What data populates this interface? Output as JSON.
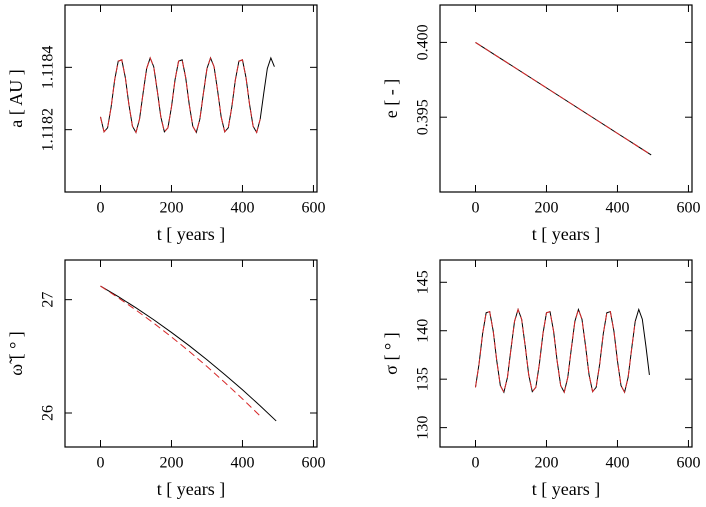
{
  "chart_data": [
    {
      "type": "line",
      "xlabel": "t [ years ]",
      "ylabel": "a [ AU ]",
      "xlim": [
        -100,
        610
      ],
      "xticks": [
        0,
        200,
        400,
        600
      ],
      "ylim": [
        1.118,
        1.1186
      ],
      "yticks": [
        1.1182,
        1.1184
      ],
      "series": [
        {
          "color": "#000000",
          "dashed": false,
          "x": [
            0,
            10,
            20,
            30,
            40,
            50,
            60,
            70,
            80,
            90,
            100,
            110,
            120,
            130,
            140,
            150,
            160,
            170,
            180,
            190,
            200,
            210,
            220,
            230,
            240,
            250,
            260,
            270,
            280,
            290,
            300,
            310,
            320,
            330,
            340,
            350,
            360,
            370,
            380,
            390,
            400,
            410,
            420,
            430,
            440,
            450,
            460,
            470,
            480,
            490
          ],
          "values": [
            1.118241,
            1.118193,
            1.118206,
            1.118273,
            1.11836,
            1.11842,
            1.118424,
            1.118367,
            1.118281,
            1.118211,
            1.118191,
            1.118234,
            1.118317,
            1.118396,
            1.11843,
            1.118402,
            1.118325,
            1.118241,
            1.118193,
            1.118206,
            1.118273,
            1.11836,
            1.11842,
            1.118424,
            1.118367,
            1.118281,
            1.118211,
            1.118191,
            1.118234,
            1.118317,
            1.118396,
            1.11843,
            1.118402,
            1.118325,
            1.118241,
            1.118193,
            1.118206,
            1.118273,
            1.11836,
            1.11842,
            1.118424,
            1.118367,
            1.118281,
            1.118211,
            1.118191,
            1.118234,
            1.118317,
            1.118396,
            1.11843,
            1.118402
          ]
        },
        {
          "color": "#d62728",
          "dashed": true,
          "x": [
            0,
            10,
            20,
            30,
            40,
            50,
            60,
            70,
            80,
            90,
            100,
            110,
            120,
            130,
            140,
            150,
            160,
            170,
            180,
            190,
            200,
            210,
            220,
            230,
            240,
            250,
            260,
            270,
            280,
            290,
            300,
            310,
            320,
            330,
            340,
            350,
            360,
            370,
            380,
            390,
            400,
            410,
            420,
            430,
            440,
            450
          ],
          "values": [
            1.118241,
            1.118193,
            1.118206,
            1.118273,
            1.11836,
            1.11842,
            1.118424,
            1.118367,
            1.118281,
            1.118211,
            1.118191,
            1.118234,
            1.118317,
            1.118396,
            1.11843,
            1.118402,
            1.118325,
            1.118241,
            1.118193,
            1.118206,
            1.118273,
            1.11836,
            1.11842,
            1.118424,
            1.118367,
            1.118281,
            1.118211,
            1.118191,
            1.118234,
            1.118317,
            1.118396,
            1.11843,
            1.118402,
            1.118325,
            1.118241,
            1.118193,
            1.118206,
            1.118273,
            1.11836,
            1.11842,
            1.118424,
            1.118367,
            1.118281,
            1.118211,
            1.118191,
            1.118234
          ]
        }
      ]
    },
    {
      "type": "line",
      "xlabel": "t [ years ]",
      "ylabel": "e [ - ]",
      "xlim": [
        -100,
        610
      ],
      "xticks": [
        0,
        200,
        400,
        600
      ],
      "ylim": [
        0.39,
        0.4025
      ],
      "yticks": [
        0.395,
        {
          "value": 0.4,
          "label": "0.400"
        }
      ],
      "series": [
        {
          "color": "#000000",
          "dashed": false,
          "x": [
            0,
            50,
            100,
            150,
            200,
            250,
            300,
            350,
            400,
            450,
            495
          ],
          "values": [
            0.4,
            0.39924,
            0.39848,
            0.39772,
            0.39696,
            0.3962,
            0.39544,
            0.39468,
            0.39392,
            0.39316,
            0.39248
          ]
        },
        {
          "color": "#d62728",
          "dashed": true,
          "x": [
            0,
            50,
            100,
            150,
            200,
            250,
            300,
            350,
            400,
            450,
            495
          ],
          "values": [
            0.4,
            0.39924,
            0.39848,
            0.39772,
            0.39696,
            0.3962,
            0.39544,
            0.39468,
            0.39392,
            0.39316,
            0.39248
          ]
        }
      ]
    },
    {
      "type": "line",
      "xlabel": "t [ years ]",
      "ylabel": "ω̃ [ ° ]",
      "xlim": [
        -100,
        610
      ],
      "xticks": [
        0,
        200,
        400,
        600
      ],
      "ylim": [
        25.7,
        27.35
      ],
      "yticks": [
        26,
        27
      ],
      "series": [
        {
          "color": "#000000",
          "dashed": false,
          "x": [
            0,
            50,
            100,
            150,
            200,
            250,
            300,
            350,
            400,
            450,
            495
          ],
          "values": [
            27.12,
            27.027,
            26.928,
            26.823,
            26.711,
            26.594,
            26.47,
            26.34,
            26.205,
            26.063,
            25.93
          ]
        },
        {
          "color": "#d62728",
          "dashed": true,
          "x": [
            0,
            50,
            100,
            150,
            200,
            250,
            300,
            350,
            400,
            450
          ],
          "values": [
            27.12,
            27.017,
            26.908,
            26.793,
            26.671,
            26.544,
            26.41,
            26.27,
            26.125,
            25.973
          ]
        }
      ]
    },
    {
      "type": "line",
      "xlabel": "t [ years ]",
      "ylabel": "σ [ ° ]",
      "xlim": [
        -100,
        610
      ],
      "xticks": [
        0,
        200,
        400,
        600
      ],
      "ylim": [
        128,
        147.3
      ],
      "yticks": [
        130,
        135,
        140,
        145
      ],
      "series": [
        {
          "color": "#000000",
          "dashed": false,
          "x": [
            0,
            10,
            20,
            30,
            40,
            50,
            60,
            70,
            80,
            90,
            100,
            110,
            120,
            130,
            140,
            150,
            160,
            170,
            180,
            190,
            200,
            210,
            220,
            230,
            240,
            250,
            260,
            270,
            280,
            290,
            300,
            310,
            320,
            330,
            340,
            350,
            360,
            370,
            380,
            390,
            400,
            410,
            420,
            430,
            440,
            450,
            460,
            470,
            480,
            490
          ],
          "values": [
            134.16,
            136.57,
            139.68,
            141.85,
            141.97,
            139.95,
            136.88,
            134.34,
            133.65,
            135.18,
            138.14,
            140.97,
            142.2,
            141.19,
            138.45,
            135.44,
            133.71,
            134.16,
            136.57,
            139.68,
            141.85,
            141.97,
            139.95,
            136.88,
            134.34,
            133.65,
            135.18,
            138.14,
            140.97,
            142.2,
            141.19,
            138.45,
            135.44,
            133.71,
            134.16,
            136.57,
            139.68,
            141.85,
            141.97,
            139.95,
            136.88,
            134.34,
            133.65,
            135.18,
            138.14,
            140.97,
            142.2,
            141.19,
            138.45,
            135.44
          ]
        },
        {
          "color": "#d62728",
          "dashed": true,
          "x": [
            0,
            10,
            20,
            30,
            40,
            50,
            60,
            70,
            80,
            90,
            100,
            110,
            120,
            130,
            140,
            150,
            160,
            170,
            180,
            190,
            200,
            210,
            220,
            230,
            240,
            250,
            260,
            270,
            280,
            290,
            300,
            310,
            320,
            330,
            340,
            350,
            360,
            370,
            380,
            390,
            400,
            410,
            420,
            430,
            440,
            450
          ],
          "values": [
            134.16,
            136.57,
            139.68,
            141.85,
            141.97,
            139.95,
            136.88,
            134.34,
            133.65,
            135.18,
            138.14,
            140.97,
            142.2,
            141.19,
            138.45,
            135.44,
            133.71,
            134.16,
            136.57,
            139.68,
            141.85,
            141.97,
            139.95,
            136.88,
            134.34,
            133.65,
            135.18,
            138.14,
            140.97,
            142.2,
            141.19,
            138.45,
            135.44,
            133.71,
            134.16,
            136.57,
            139.68,
            141.85,
            141.97,
            139.95,
            136.88,
            134.34,
            133.65,
            135.18,
            138.14,
            140.97
          ]
        }
      ]
    }
  ]
}
